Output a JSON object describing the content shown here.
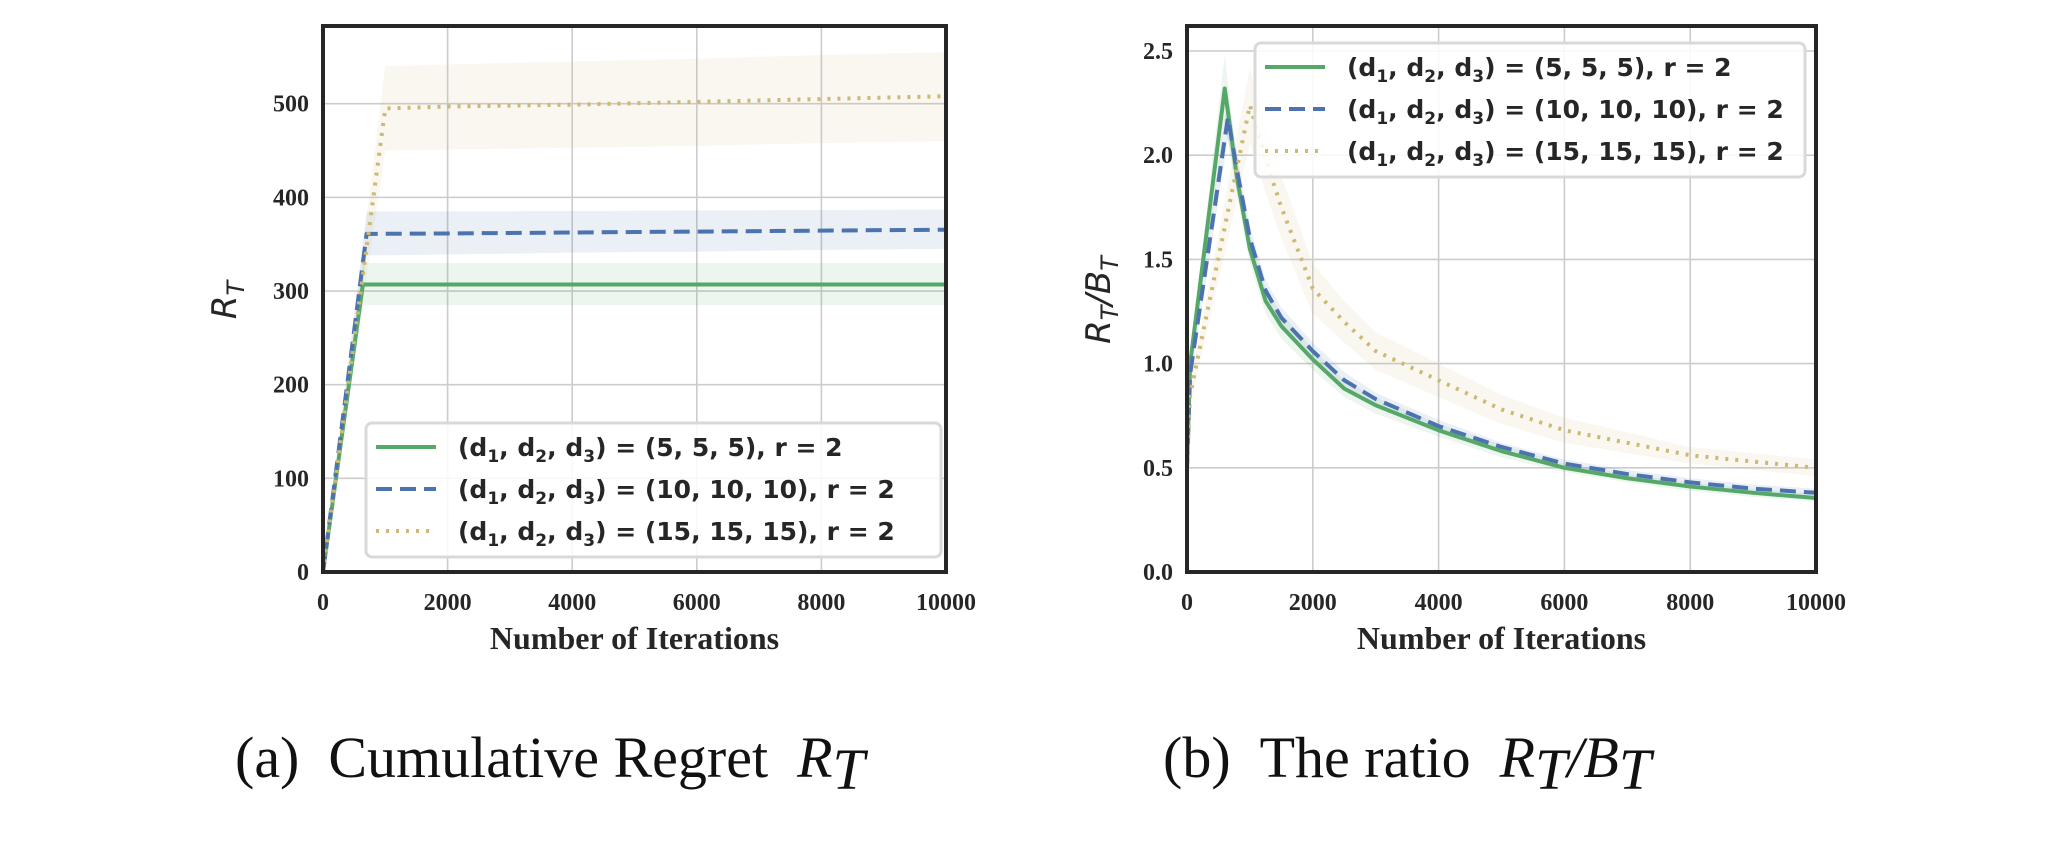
{
  "chart_data": [
    {
      "type": "line",
      "id": "a",
      "caption_prefix": "(a)",
      "caption_text": "Cumulative Regret",
      "caption_math": "R",
      "caption_math_sub": "T",
      "title": "",
      "xlabel": "Number of Iterations",
      "ylabel": "R",
      "ylabel_sub": "T",
      "xlim": [
        0,
        10000
      ],
      "ylim": [
        0,
        583
      ],
      "xticks": [
        0,
        2000,
        4000,
        6000,
        8000,
        10000
      ],
      "xtick_labels": [
        "0",
        "2000",
        "4000",
        "6000",
        "8000",
        "10000"
      ],
      "yticks": [
        0,
        100,
        200,
        300,
        400,
        500
      ],
      "ytick_labels": [
        "0",
        "100",
        "200",
        "300",
        "400",
        "500"
      ],
      "grid": true,
      "legend_position": "lower-right",
      "series": [
        {
          "name": "(d1, d2, d3) = (5, 5, 5), r = 2",
          "style": "solid",
          "color": "#55a868",
          "x": [
            0,
            640,
            2000,
            4000,
            6000,
            8000,
            10000
          ],
          "y": [
            0,
            307,
            307,
            307,
            307,
            307,
            307
          ],
          "band_low": [
            0,
            285,
            285,
            285,
            285,
            285,
            285
          ],
          "band_high": [
            0,
            330,
            330,
            330,
            330,
            330,
            330
          ]
        },
        {
          "name": "(d1, d2, d3) = (10, 10, 10), r = 2",
          "style": "dashed",
          "color": "#4c72b0",
          "x": [
            0,
            700,
            2000,
            4000,
            6000,
            8000,
            10000
          ],
          "y": [
            0,
            361,
            361.5,
            362.5,
            363.5,
            364.5,
            365.5
          ],
          "band_low": [
            0,
            338,
            339,
            341,
            342,
            344,
            345
          ],
          "band_high": [
            0,
            385,
            385,
            385.5,
            386,
            386.5,
            387
          ]
        },
        {
          "name": "(d1, d2, d3) = (15, 15, 15), r = 2",
          "style": "dotted",
          "color": "#ccb974",
          "x": [
            0,
            1000,
            2000,
            4000,
            6000,
            8000,
            10000
          ],
          "y": [
            0,
            495,
            497,
            499,
            502,
            505,
            508
          ],
          "band_low": [
            0,
            450,
            451,
            453,
            455,
            458,
            460
          ],
          "band_high": [
            0,
            540,
            542,
            545,
            548,
            552,
            555
          ]
        }
      ]
    },
    {
      "type": "line",
      "id": "b",
      "caption_prefix": "(b)",
      "caption_text": "The ratio",
      "caption_math": "R",
      "caption_math_sub": "T",
      "caption_math2": "B",
      "caption_math2_sub": "T",
      "title": "",
      "xlabel": "Number of Iterations",
      "ylabel": "R",
      "ylabel_sub": "T",
      "ylabel2": "B",
      "ylabel2_sub": "T",
      "xlim": [
        0,
        10000
      ],
      "ylim": [
        0,
        2.62
      ],
      "xticks": [
        0,
        2000,
        4000,
        6000,
        8000,
        10000
      ],
      "xtick_labels": [
        "0",
        "2000",
        "4000",
        "6000",
        "8000",
        "10000"
      ],
      "yticks": [
        0,
        0.5,
        1.0,
        1.5,
        2.0,
        2.5
      ],
      "ytick_labels": [
        "0.0",
        "0.5",
        "1.0",
        "1.5",
        "2.0",
        "2.5"
      ],
      "grid": true,
      "legend_position": "upper-right",
      "series": [
        {
          "name": "(d1, d2, d3) = (5, 5, 5), r = 2",
          "style": "solid",
          "color": "#55a868",
          "x": [
            0,
            50,
            600,
            800,
            1000,
            1250,
            1500,
            2000,
            2500,
            3000,
            4000,
            5000,
            6000,
            7000,
            8000,
            9000,
            10000
          ],
          "y": [
            0.5,
            1.0,
            2.32,
            1.88,
            1.55,
            1.3,
            1.18,
            1.02,
            0.88,
            0.8,
            0.68,
            0.58,
            0.5,
            0.45,
            0.41,
            0.38,
            0.355
          ],
          "band_low": [
            0.5,
            0.95,
            2.15,
            1.8,
            1.48,
            1.24,
            1.12,
            0.97,
            0.84,
            0.76,
            0.65,
            0.55,
            0.48,
            0.43,
            0.39,
            0.36,
            0.34
          ],
          "band_high": [
            0.5,
            1.05,
            2.48,
            1.96,
            1.62,
            1.36,
            1.24,
            1.07,
            0.92,
            0.84,
            0.71,
            0.61,
            0.52,
            0.47,
            0.43,
            0.4,
            0.375
          ]
        },
        {
          "name": "(d1, d2, d3) = (10, 10, 10), r = 2",
          "style": "dashed",
          "color": "#4c72b0",
          "x": [
            0,
            50,
            650,
            800,
            1000,
            1250,
            1500,
            2000,
            2500,
            3000,
            4000,
            5000,
            6000,
            7000,
            8000,
            9000,
            10000
          ],
          "y": [
            0.5,
            0.95,
            2.18,
            1.92,
            1.6,
            1.35,
            1.22,
            1.06,
            0.92,
            0.83,
            0.7,
            0.6,
            0.52,
            0.47,
            0.43,
            0.4,
            0.38
          ],
          "band_low": [
            0.5,
            0.9,
            2.08,
            1.84,
            1.54,
            1.3,
            1.17,
            1.02,
            0.88,
            0.8,
            0.67,
            0.58,
            0.5,
            0.45,
            0.41,
            0.38,
            0.36
          ],
          "band_high": [
            0.5,
            1.0,
            2.28,
            2.0,
            1.66,
            1.4,
            1.27,
            1.1,
            0.96,
            0.86,
            0.73,
            0.62,
            0.54,
            0.49,
            0.45,
            0.42,
            0.4
          ]
        },
        {
          "name": "(d1, d2, d3) = (15, 15, 15), r = 2",
          "style": "dotted",
          "color": "#ccb974",
          "x": [
            0,
            50,
            1000,
            1250,
            1500,
            2000,
            2500,
            3000,
            4000,
            5000,
            6000,
            7000,
            8000,
            9000,
            10000
          ],
          "y": [
            0.5,
            0.85,
            2.24,
            1.98,
            1.75,
            1.36,
            1.2,
            1.06,
            0.92,
            0.78,
            0.68,
            0.62,
            0.56,
            0.53,
            0.5
          ],
          "band_low": [
            0.5,
            0.8,
            2.06,
            1.82,
            1.6,
            1.24,
            1.1,
            0.97,
            0.84,
            0.71,
            0.62,
            0.57,
            0.52,
            0.49,
            0.46
          ],
          "band_high": [
            0.5,
            0.9,
            2.42,
            2.14,
            1.9,
            1.48,
            1.3,
            1.15,
            1.0,
            0.85,
            0.74,
            0.67,
            0.6,
            0.57,
            0.54
          ]
        }
      ]
    }
  ],
  "legend": {
    "entries": [
      {
        "prefix": "(d",
        "s1": "1",
        "mid1": ", d",
        "s2": "2",
        "mid2": ", d",
        "s3": "3",
        "suffix": ") = (5, 5, 5), r = 2"
      },
      {
        "prefix": "(d",
        "s1": "1",
        "mid1": ", d",
        "s2": "2",
        "mid2": ", d",
        "s3": "3",
        "suffix": ") = (10, 10, 10), r = 2"
      },
      {
        "prefix": "(d",
        "s1": "1",
        "mid1": ", d",
        "s2": "2",
        "mid2": ", d",
        "s3": "3",
        "suffix": ") = (15, 15, 15), r = 2"
      }
    ]
  }
}
